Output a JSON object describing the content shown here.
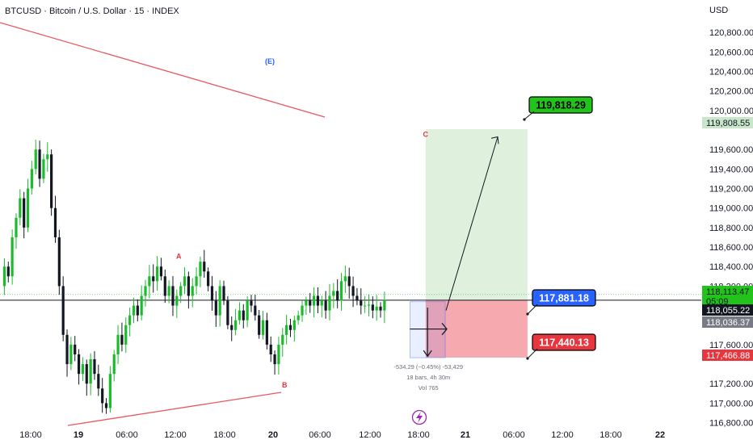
{
  "header": {
    "title": "BTCUSD · Bitcoin / U.S. Dollar · 15 · INDEX"
  },
  "colors": {
    "up": "#089981",
    "down": "#131722",
    "green_zone": "#dff1dc",
    "red_zone": "#f7a9b0",
    "trend": "#e8575f",
    "wave_blue": "#2962ff",
    "wave_red": "#e8363f"
  },
  "chart_data": {
    "type": "candlestick",
    "currency": "USD",
    "y_ticks": [
      "120,800.00",
      "120,600.00",
      "120,400.00",
      "120,200.00",
      "120,000.00",
      "119,600.00",
      "119,400.00",
      "119,200.00",
      "119,000.00",
      "118,800.00",
      "118,600.00",
      "118,400.00",
      "118,200.00",
      "117,600.00",
      "117,200.00",
      "117,000.00",
      "116,800.00"
    ],
    "ylim": [
      116780,
      121000
    ],
    "x_ticks": [
      "18:00",
      "19",
      "06:00",
      "12:00",
      "18:00",
      "20",
      "06:00",
      "12:00",
      "18:00",
      "21",
      "06:00",
      "12:00",
      "18:00",
      "22"
    ],
    "price_tags": [
      {
        "label": "119,808.55",
        "value": 119808.55,
        "kind": "target"
      },
      {
        "label": "118,113.47",
        "value": 118113.47,
        "kind": "last",
        "sub": "05:09"
      },
      {
        "label": "118,055.22",
        "value": 118055.22,
        "kind": "current"
      },
      {
        "label": "118,036.37",
        "value": 118036.37,
        "kind": "gray"
      },
      {
        "label": "117,466.88",
        "value": 117466.88,
        "kind": "stop"
      }
    ],
    "callouts": [
      {
        "label": "119,818.29",
        "value": 119818.29,
        "kind": "green"
      },
      {
        "label": "117,881.18",
        "value": 117881.18,
        "kind": "blue"
      },
      {
        "label": "117,440.13",
        "value": 117440.13,
        "kind": "red"
      }
    ],
    "wave_labels": [
      {
        "text": "(E)",
        "t": 60,
        "value": 120480,
        "color": "blue"
      },
      {
        "text": "A",
        "t": 45,
        "value": 118480,
        "color": "red"
      },
      {
        "text": "B",
        "t": 72,
        "value": 117160,
        "color": "red"
      },
      {
        "text": "C",
        "t": 108,
        "value": 119730,
        "color": "red"
      }
    ],
    "position": {
      "entry": 118055.22,
      "target": 119808.55,
      "stop": 117466.88,
      "t_start": 108,
      "t_end": 134
    },
    "measure": {
      "line1": "-534.29 (−0.45%) -53,429",
      "line2": "18 bars, 4h 30m",
      "line3": "Vol 765"
    },
    "price_path": [
      118200,
      118400,
      118300,
      118700,
      118900,
      119100,
      118800,
      119200,
      119400,
      119600,
      119300,
      119500,
      119550,
      119000,
      118700,
      118200,
      117700,
      117400,
      117600,
      117500,
      117300,
      117400,
      117200,
      117450,
      117300,
      117150,
      117000,
      116950,
      117300,
      117500,
      117700,
      117600,
      117800,
      117900,
      118000,
      117900,
      118100,
      118200,
      118300,
      118250,
      118400,
      118300,
      118100,
      118200,
      118000,
      118100,
      118200,
      118300,
      118100,
      118200,
      118300,
      118450,
      118350,
      118200,
      118050,
      117900,
      118200,
      118050,
      117800,
      117750,
      117850,
      117950,
      117850,
      118050,
      118000,
      117900,
      117700,
      117850,
      117600,
      117500,
      117400,
      117600,
      117700,
      117800,
      117750,
      117850,
      117900,
      118000,
      118050,
      118000,
      118100,
      118000,
      118050,
      117950,
      118100,
      118150,
      118050,
      118250,
      118300,
      118200,
      118100,
      118050,
      118000,
      118000,
      118010,
      117950,
      117990,
      117950,
      118060
    ]
  }
}
